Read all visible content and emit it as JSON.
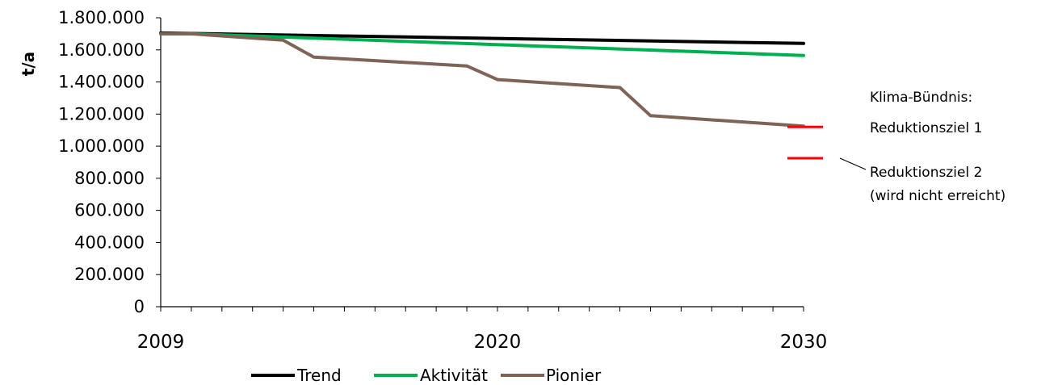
{
  "chart_data": {
    "type": "line",
    "ylabel": "t/a",
    "xlabel": "",
    "x_tick_labels": [
      "2009",
      "2020",
      "2030"
    ],
    "xlim": [
      2009,
      2030
    ],
    "ylim": [
      0,
      1800000
    ],
    "y_tick_labels": [
      "0",
      "200.000",
      "400.000",
      "600.000",
      "800.000",
      "1.000.000",
      "1.200.000",
      "1.400.000",
      "1.600.000",
      "1.800.000"
    ],
    "y_ticks": [
      0,
      200000,
      400000,
      600000,
      800000,
      1000000,
      1200000,
      1400000,
      1600000,
      1800000
    ],
    "grid": false,
    "legend_position": "bottom",
    "series": [
      {
        "name": "Trend",
        "color": "#000000",
        "x": [
          2009,
          2030
        ],
        "values": [
          1705000,
          1640000
        ]
      },
      {
        "name": "Aktivität",
        "color": "#00b050",
        "x": [
          2009,
          2010,
          2030
        ],
        "values": [
          1700000,
          1700000,
          1565000
        ]
      },
      {
        "name": "Pionier",
        "color": "#7f6357",
        "x": [
          2009,
          2010,
          2013,
          2014,
          2019,
          2020,
          2024,
          2025,
          2030
        ],
        "values": [
          1700000,
          1700000,
          1660000,
          1555000,
          1500000,
          1415000,
          1365000,
          1190000,
          1125000
        ]
      }
    ],
    "targets": [
      {
        "label": "Reduktionsziel 1",
        "value": 1120000,
        "x": 2030,
        "color": "#ff0000"
      },
      {
        "label": "Reduktionsziel 2",
        "value": 925000,
        "x": 2030,
        "color": "#ff0000"
      }
    ],
    "annotations": {
      "header": "Klima-Bündnis:",
      "target1": "Reduktionsziel 1",
      "target2_line1": "Reduktionsziel 2",
      "target2_line2": "(wird nicht erreicht)"
    }
  }
}
